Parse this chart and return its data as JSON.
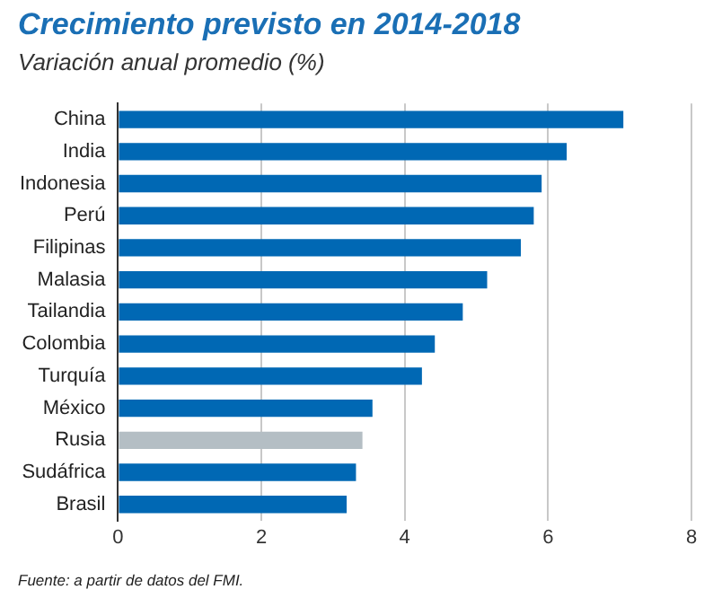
{
  "chart_data": {
    "type": "bar",
    "orientation": "horizontal",
    "title": "Crecimiento previsto en 2014-2018",
    "subtitle": "Variación anual promedio (%)",
    "categories": [
      "China",
      "India",
      "Indonesia",
      "Perú",
      "Filipinas",
      "Malasia",
      "Tailandia",
      "Colombia",
      "Turquía",
      "México",
      "Rusia",
      "Sudáfrica",
      "Brasil"
    ],
    "values": [
      7.05,
      6.26,
      5.91,
      5.8,
      5.62,
      5.15,
      4.81,
      4.42,
      4.24,
      3.55,
      3.41,
      3.32,
      3.19
    ],
    "colors": [
      "#0068b4",
      "#0068b4",
      "#0068b4",
      "#0068b4",
      "#0068b4",
      "#0068b4",
      "#0068b4",
      "#0068b4",
      "#0068b4",
      "#0068b4",
      "#b4bec4",
      "#0068b4",
      "#0068b4"
    ],
    "xlim": [
      0,
      8
    ],
    "xticks": [
      0,
      2,
      4,
      6,
      8
    ],
    "grid": "x",
    "legend": false,
    "annotations": [
      "Fuente: a partir de datos del FMI."
    ]
  }
}
